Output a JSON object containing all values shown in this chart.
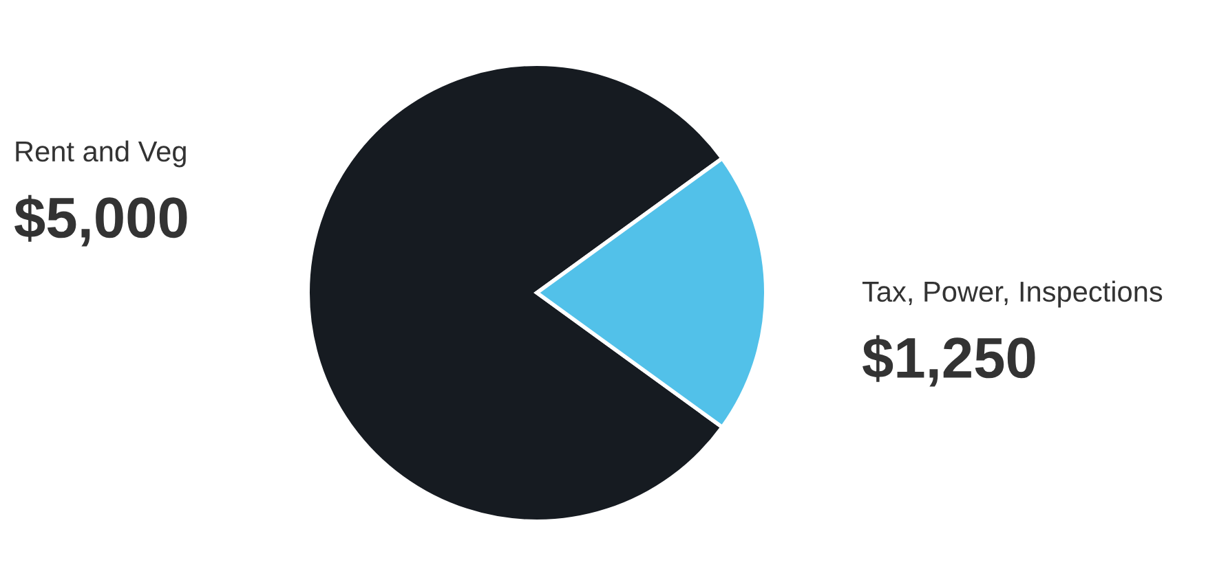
{
  "chart_data": {
    "type": "pie",
    "categories": [
      "Rent and Veg",
      "Tax, Power, Inspections"
    ],
    "values": [
      5000,
      1250
    ],
    "colors": [
      "#161b21",
      "#52c1e9"
    ],
    "value_labels": [
      "$5,000",
      "$1,250"
    ]
  }
}
